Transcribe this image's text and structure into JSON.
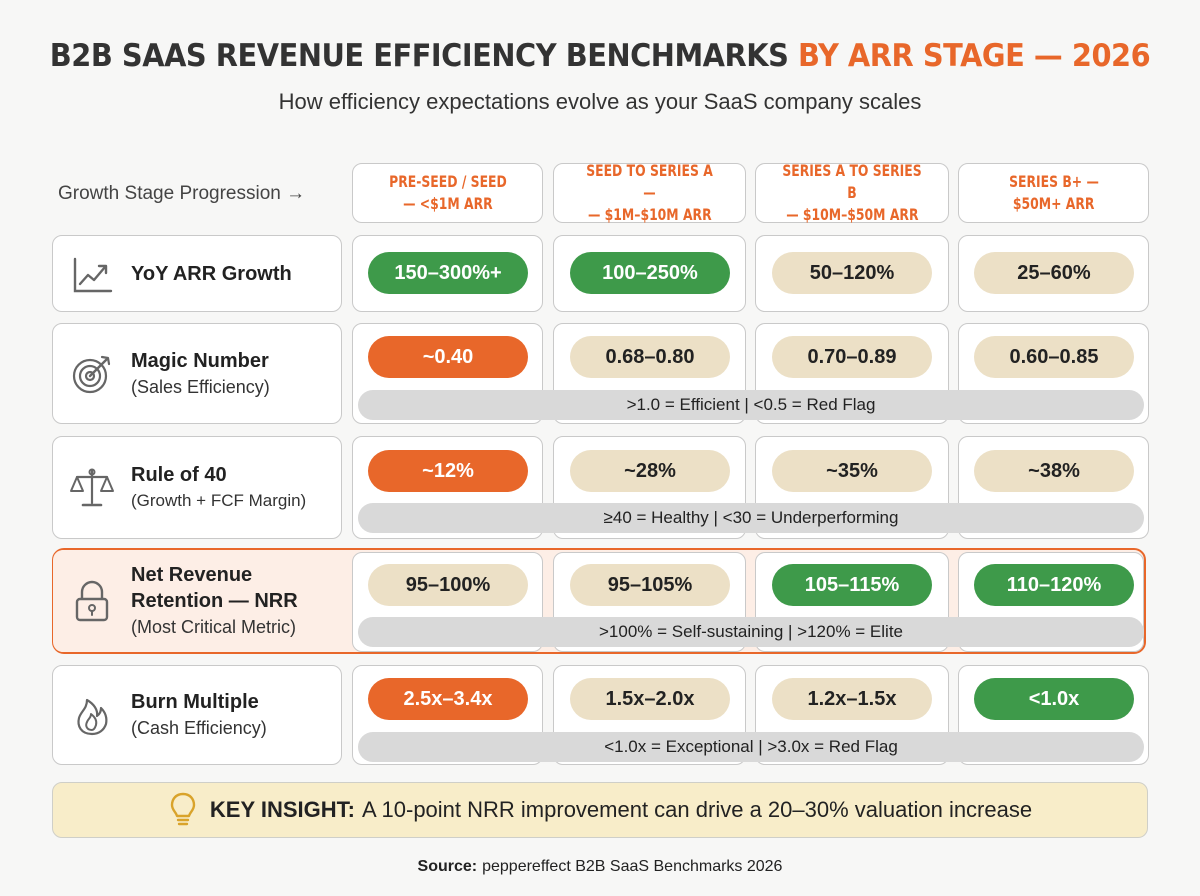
{
  "title": {
    "main": "B2B SAAS REVENUE EFFICIENCY BENCHMARKS",
    "accent": "BY ARR STAGE — 2026"
  },
  "subtitle": "How efficiency expectations evolve as your SaaS company scales",
  "stage_label": "Growth Stage Progression →",
  "stages": [
    {
      "line1": "PRE-SEED / SEED",
      "line2": "— <$1M ARR"
    },
    {
      "line1": "SEED TO SERIES A —",
      "line2": "— $1M–$10M ARR"
    },
    {
      "line1": "SERIES A TO SERIES B",
      "line2": "— $10M–$50M ARR"
    },
    {
      "line1": "SERIES B+ —",
      "line2": "$50M+ ARR"
    }
  ],
  "metrics": [
    {
      "icon": "line-chart-icon",
      "main": "YoY ARR Growth",
      "sub": "",
      "values": [
        {
          "text": "150–300%+",
          "status": "green"
        },
        {
          "text": "100–250%",
          "status": "green"
        },
        {
          "text": "50–120%",
          "status": "beige"
        },
        {
          "text": "25–60%",
          "status": "beige"
        }
      ],
      "note": ""
    },
    {
      "icon": "target-icon",
      "main": "Magic Number",
      "sub": "(Sales Efficiency)",
      "values": [
        {
          "text": "~0.40",
          "status": "orange"
        },
        {
          "text": "0.68–0.80",
          "status": "beige"
        },
        {
          "text": "0.70–0.89",
          "status": "beige"
        },
        {
          "text": "0.60–0.85",
          "status": "beige"
        }
      ],
      "note": ">1.0 = Efficient | <0.5 = Red Flag"
    },
    {
      "icon": "scale-icon",
      "main": "Rule of 40",
      "sub": "(Growth + FCF Margin)",
      "values": [
        {
          "text": "~12%",
          "status": "orange"
        },
        {
          "text": "~28%",
          "status": "beige"
        },
        {
          "text": "~35%",
          "status": "beige"
        },
        {
          "text": "~38%",
          "status": "beige"
        }
      ],
      "note": "≥40 = Healthy | <30 = Underperforming"
    },
    {
      "icon": "lock-icon",
      "main": "Net Revenue Retention — NRR",
      "sub": "(Most Critical Metric)",
      "values": [
        {
          "text": "95–100%",
          "status": "beige"
        },
        {
          "text": "95–105%",
          "status": "beige"
        },
        {
          "text": "105–115%",
          "status": "green"
        },
        {
          "text": "110–120%",
          "status": "green"
        }
      ],
      "note": ">100% = Self-sustaining | >120% = Elite"
    },
    {
      "icon": "flame-icon",
      "main": "Burn Multiple",
      "sub": "(Cash Efficiency)",
      "values": [
        {
          "text": "2.5x–3.4x",
          "status": "orange"
        },
        {
          "text": "1.5x–2.0x",
          "status": "beige"
        },
        {
          "text": "1.2x–1.5x",
          "status": "beige"
        },
        {
          "text": "<1.0x",
          "status": "green"
        }
      ],
      "note": "<1.0x = Exceptional | >3.0x = Red Flag"
    }
  ],
  "insight": {
    "icon": "lightbulb-icon",
    "label": "KEY INSIGHT:",
    "text": "A 10-point NRR improvement can drive a 20–30% valuation increase"
  },
  "source": {
    "label": "Source:",
    "text": "peppereffect B2B SaaS Benchmarks 2026"
  },
  "colors": {
    "accent": "#e8672a",
    "good": "#3e9a4a",
    "neutral": "#ece0c6",
    "insight_bg": "#f8edc9"
  }
}
